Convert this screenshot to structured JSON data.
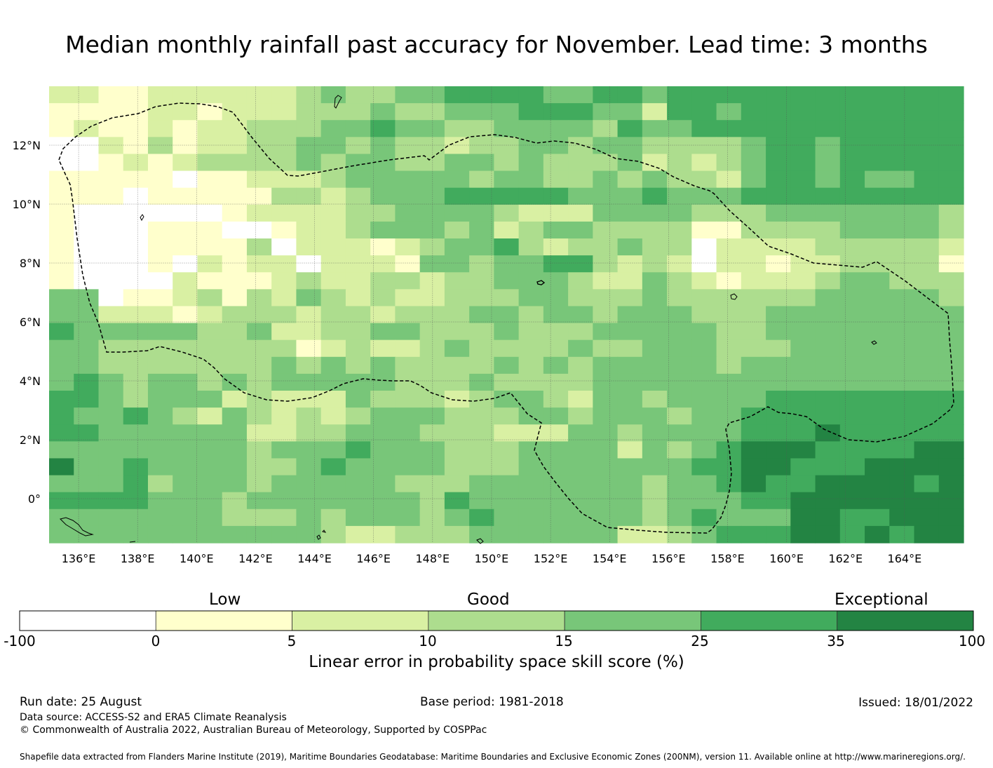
{
  "title": "Median monthly rainfall past accuracy for November. Lead time: 3 months",
  "map": {
    "lon_range": [
      135,
      166
    ],
    "lat_range": [
      -1.5,
      14
    ],
    "lon_ticks": [
      "136°E",
      "138°E",
      "140°E",
      "142°E",
      "144°E",
      "146°E",
      "148°E",
      "150°E",
      "152°E",
      "154°E",
      "156°E",
      "158°E",
      "160°E",
      "162°E",
      "164°E"
    ],
    "lat_ticks": [
      "12°N",
      "10°N",
      "8°N",
      "6°N",
      "4°N",
      "2°N",
      "0°"
    ],
    "grid": true,
    "boundary_style": "dashed",
    "grid_rows_skill_class": [
      "2 2 1 1 2 2 2 2 2 2 3 4 3 3 4 4 5 5 5 5 4 4 5 5 4 5 5 5 5 5 5 5 5 5 5 5 5",
      "1 1 1 1 2 2 1 2 2 2 3 3 3 4 3 3 4 4 4 5 5 5 4 4 2 5 5 4 5 5 5 5 5 5 5 5 5",
      "1 2 1 1 2 1 2 2 3 3 3 4 4 5 4 4 3 3 4 4 4 4 3 5 4 4 5 5 5 5 5 5 5 5 5 5 5",
      "0 0 2 1 3 1 2 2 3 3 4 4 3 4 3 3 2 3 3 4 4 3 4 4 3 3 3 3 4 5 5 4 5 5 5 5 5",
      "0 0 1 2 1 2 3 3 3 3 4 3 4 4 3 3 4 4 3 4 3 3 3 4 2 3 2 3 4 5 5 4 5 5 5 5 5",
      "1 1 1 1 1 0 1 1 2 2 2 3 4 4 4 4 4 3 4 4 3 3 4 3 4 3 3 2 4 5 5 4 5 4 4 5 5",
      "1 1 1 0 1 1 1 1 1 3 3 2 3 4 4 4 5 5 5 5 5 4 4 4 5 4 4 4 5 5 5 5 5 5 5 5 5",
      "1 0 0 0 0 0 0 1 2 2 2 2 3 3 4 4 4 4 3 2 2 2 4 4 4 4 3 3 3 4 4 4 4 4 4 4 3",
      "1 0 0 0 1 1 1 0 0 1 2 2 3 4 4 4 3 4 2 3 4 4 3 3 3 3 1 1 3 3 3 3 4 4 4 4 3",
      "1 0 0 0 1 1 1 1 3 0 2 2 2 1 2 3 4 4 5 3 2 3 3 4 3 3 0 2 2 2 2 3 3 3 3 3 2",
      "1 0 0 0 1 0 2 1 2 2 0 2 2 2 1 4 4 3 4 4 5 5 3 2 3 2 0 2 2 1 2 2 3 3 3 3 1",
      "1 0 0 0 0 2 1 1 1 2 3 2 2 3 3 2 3 3 4 4 4 3 2 2 4 3 2 1 2 2 2 3 4 4 3 3 3",
      "4 4 0 1 1 2 3 1 3 2 4 3 2 3 2 2 3 3 3 4 4 3 3 3 4 3 3 3 3 3 3 4 4 4 4 4 3",
      "4 4 2 2 2 1 2 3 3 3 2 3 3 2 3 3 3 4 4 3 4 4 3 4 4 4 3 3 3 4 4 4 4 4 4 4 4",
      "5 4 4 4 4 4 3 3 4 2 2 3 3 4 4 3 3 3 4 3 3 3 4 4 4 4 4 3 3 4 4 4 4 4 4 4 4",
      "4 4 3 3 3 3 3 3 3 3 1 2 3 2 2 3 4 3 3 3 3 4 3 3 4 4 4 3 3 3 4 4 4 4 4 4 4",
      "4 4 3 3 3 3 3 3 3 4 3 4 3 4 3 3 3 3 4 3 4 3 4 4 4 4 4 3 4 4 4 4 4 4 4 4 4",
      "4 5 4 3 4 4 3 4 3 4 4 4 4 4 3 3 3 4 3 3 3 3 4 4 4 4 4 4 4 4 4 4 4 4 4 4 4",
      "5 5 4 3 4 4 4 2 3 2 2 2 4 3 3 3 2 3 4 4 3 2 4 4 3 4 4 4 4 5 5 5 5 5 5 5 5",
      "5 4 4 5 4 3 2 4 3 2 3 2 3 4 4 4 3 3 3 4 4 3 4 4 4 3 4 4 5 5 5 5 5 5 5 5 5",
      "5 5 4 4 4 4 4 4 2 2 3 3 4 4 4 3 3 3 2 2 2 4 4 3 4 4 4 4 5 5 5 6 5 5 5 5 5",
      "4 4 4 4 4 4 4 4 3 4 4 4 5 4 4 4 3 3 3 4 4 4 4 2 4 3 4 5 6 6 6 5 5 5 5 6 6",
      "6 4 4 5 4 4 4 4 3 3 4 5 4 4 4 4 3 3 3 4 4 4 4 4 4 4 5 5 6 6 5 5 5 6 6 6 6",
      "4 4 4 5 3 4 4 4 3 4 4 4 4 4 3 3 3 4 4 4 4 4 4 4 3 4 4 5 6 5 5 6 6 6 6 5 6",
      "5 5 5 5 4 4 4 3 4 4 4 4 4 4 4 3 5 4 4 4 4 4 4 4 3 4 4 4 5 5 6 6 6 6 6 6 6",
      "4 4 4 4 4 4 4 3 3 3 4 3 4 4 4 3 4 5 4 4 4 4 4 4 3 4 5 4 4 4 6 6 5 5 6 6 6",
      "4 4 4 4 4 4 4 4 4 4 4 3 2 2 3 3 3 4 4 4 4 4 4 2 2 3 4 5 5 5 6 6 5 6 5 6 6"
    ]
  },
  "colorbar": {
    "categories": [
      "Low",
      "Good",
      "Exceptional"
    ],
    "ticks": [
      "-100",
      "0",
      "5",
      "10",
      "15",
      "25",
      "35",
      "100"
    ],
    "colors": [
      "#ffffff",
      "#ffffcc",
      "#d9f0a3",
      "#addd8e",
      "#78c679",
      "#41ab5d",
      "#238443"
    ],
    "label": "Linear error in probability space skill score (%)"
  },
  "footer": {
    "run_date": "Run date: 25 August",
    "base_period": "Base period: 1981-2018",
    "issued": "Issued: 18/01/2022",
    "data_source": "Data source: ACCESS-S2 and ERA5 Climate Reanalysis",
    "copyright": "© Commonwealth of Australia 2022, Australian Bureau of Meteorology, Supported by COSPPac",
    "shapefile": "Shapefile data extracted from Flanders Marine Institute (2019), Maritime Boundaries Geodatabase: Maritime Boundaries and Exclusive Economic Zones (200NM), version 11. Available online at http://www.marineregions.org/."
  }
}
